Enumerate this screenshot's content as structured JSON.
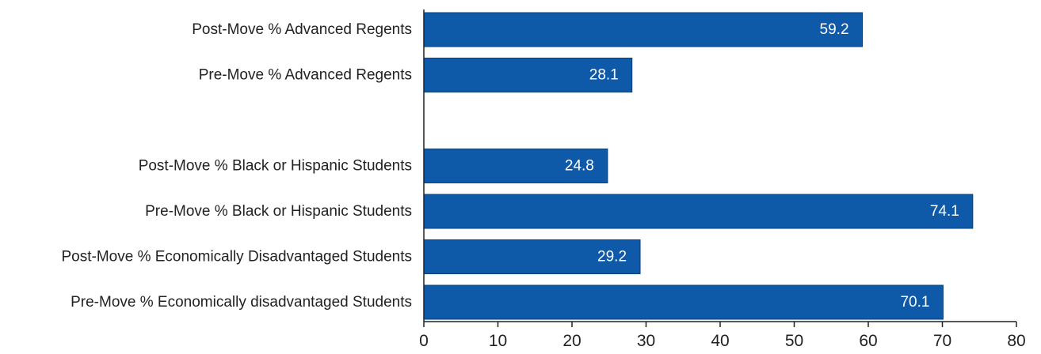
{
  "chart_data": {
    "type": "bar",
    "orientation": "horizontal",
    "categories": [
      "Post-Move % Advanced Regents",
      "Pre-Move % Advanced Regents",
      "",
      "Post-Move % Black or Hispanic Students",
      "Pre-Move % Black or Hispanic Students",
      "Post-Move % Economically Disadvantaged Students",
      "Pre-Move % Economically disadvantaged Students"
    ],
    "values": [
      59.2,
      28.1,
      null,
      24.8,
      74.1,
      29.2,
      70.1
    ],
    "value_labels": [
      "59.2",
      "28.1",
      "",
      "24.8",
      "74.1",
      "29.2",
      "70.1"
    ],
    "xlim": [
      0,
      80
    ],
    "xticks": [
      0,
      10,
      20,
      30,
      40,
      50,
      60,
      70,
      80
    ],
    "xtick_labels": [
      "0",
      "10",
      "20",
      "30",
      "40",
      "50",
      "60",
      "70",
      "80"
    ],
    "grid": false,
    "legend": "none",
    "bar_color": "#0f5aa8",
    "bar_border_color": "#0a3f7a",
    "axis_color": "#222222"
  }
}
